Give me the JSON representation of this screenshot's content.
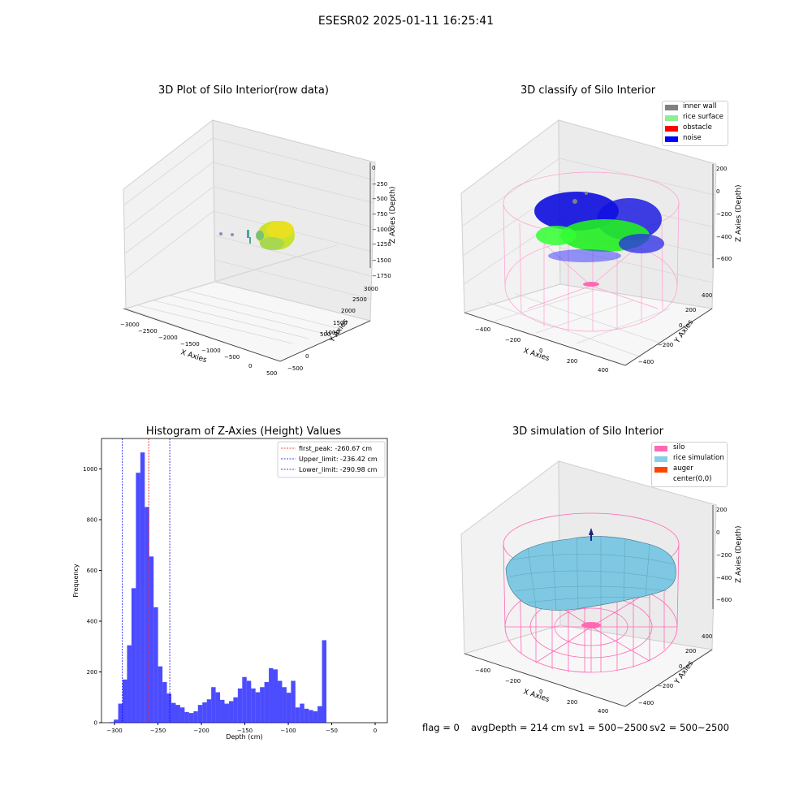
{
  "suptitle": "ESESR02 2025-01-11 16:25:41",
  "panels": {
    "raw": {
      "title": "3D Plot of Silo Interior(row data)",
      "x_ticks": [
        "−3000",
        "−2500",
        "−2000",
        "−1500",
        "−1000",
        "−500",
        "0",
        "500"
      ],
      "y_ticks": [
        "−500",
        "0",
        "500",
        "1000",
        "1500",
        "2000",
        "2500",
        "3000"
      ],
      "z_ticks": [
        "0",
        "−250",
        "−500",
        "−750",
        "−1000",
        "−1250",
        "−1500",
        "−1750"
      ],
      "xlabel": "X Axies",
      "ylabel": "Y Axies",
      "zlabel": "Z Axies (Depth)"
    },
    "classify": {
      "title": "3D classify of Silo Interior",
      "legend": [
        {
          "label": "inner wall",
          "color": "#808080"
        },
        {
          "label": "rice surface",
          "color": "#90ee90"
        },
        {
          "label": "obstacle",
          "color": "#ff0000"
        },
        {
          "label": "noise",
          "color": "#0000ff"
        }
      ],
      "x_ticks": [
        "−400",
        "−200",
        "0",
        "200",
        "400"
      ],
      "y_ticks": [
        "−400",
        "−200",
        "0",
        "200",
        "400"
      ],
      "z_ticks": [
        "200",
        "0",
        "−200",
        "−400",
        "−600"
      ],
      "xlabel": "X Axies",
      "ylabel": "Y Axies",
      "zlabel": "Z Axies (Depth)"
    },
    "simulation": {
      "title": "3D simulation of Silo Interior",
      "legend": [
        {
          "label": "silo",
          "color": "#ff69b4"
        },
        {
          "label": "rice simulation",
          "color": "#87ceeb"
        },
        {
          "label": "auger",
          "color": "#ff4500"
        },
        {
          "label": "center(0,0)",
          "color": ""
        }
      ],
      "x_ticks": [
        "−400",
        "−200",
        "0",
        "200",
        "400"
      ],
      "y_ticks": [
        "−400",
        "−200",
        "0",
        "200",
        "400"
      ],
      "z_ticks": [
        "200",
        "0",
        "−200",
        "−400",
        "−600"
      ],
      "xlabel": "X Axies",
      "ylabel": "Y Axies",
      "zlabel": "Z Axies (Depth)"
    }
  },
  "info": {
    "flag": "flag = 0",
    "avg": "avgDepth = 214 cm",
    "sv1": "sv1 = 500~2500",
    "sv2": "sv2 = 500~2500"
  },
  "chart_data": {
    "type": "bar",
    "title": "Histogram of Z-Axies (Height) Values",
    "xlabel": "Depth (cm)",
    "ylabel": "Frequency",
    "xlim": [
      -315,
      14
    ],
    "ylim": [
      0,
      1120
    ],
    "bar_color": "#0000ff",
    "x_ticks": [
      -300,
      -250,
      -200,
      -150,
      -100,
      -50,
      0
    ],
    "x_tick_labels": [
      "−300",
      "−250",
      "−200",
      "−150",
      "−100",
      "−50",
      "0"
    ],
    "y_ticks": [
      0,
      200,
      400,
      600,
      800,
      1000
    ],
    "bin_start": -306,
    "bin_width": 5.1,
    "values": [
      2,
      12,
      75,
      170,
      305,
      530,
      985,
      1065,
      850,
      655,
      455,
      222,
      160,
      115,
      78,
      70,
      60,
      42,
      38,
      45,
      70,
      80,
      92,
      140,
      120,
      90,
      75,
      85,
      100,
      135,
      180,
      165,
      135,
      120,
      140,
      160,
      215,
      210,
      165,
      140,
      118,
      165,
      60,
      75,
      55,
      50,
      45,
      65,
      325
    ],
    "lines": [
      {
        "label": "first_peak: -260.67 cm",
        "x": -260.67,
        "color": "#ff0000"
      },
      {
        "label": "Upper_limit: -236.42 cm",
        "x": -236.42,
        "color": "#0000ff"
      },
      {
        "label": "Lower_limit: -290.98 cm",
        "x": -290.98,
        "color": "#0000ff"
      }
    ]
  }
}
